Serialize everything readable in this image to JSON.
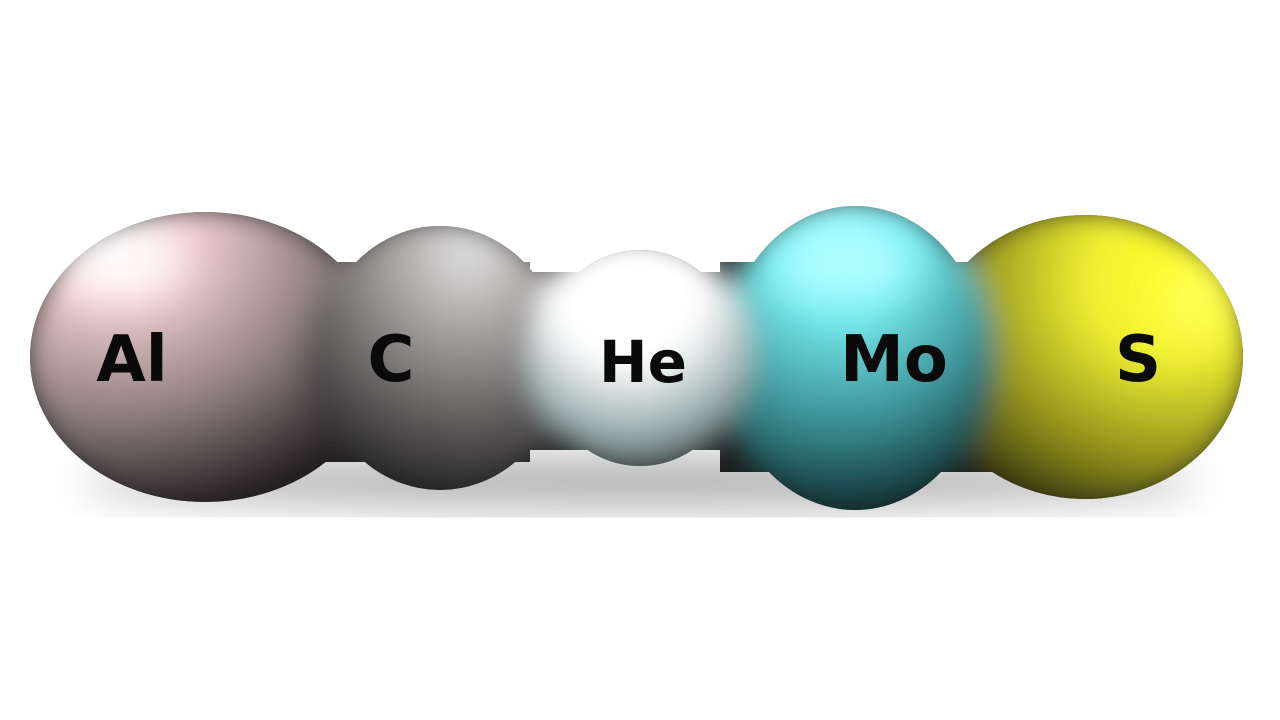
{
  "molecule": {
    "atoms": [
      {
        "symbol": "Al",
        "color": "#f7d3d6"
      },
      {
        "symbol": "C",
        "color": "#b6b6b6"
      },
      {
        "symbol": "He",
        "color": "#ffffff"
      },
      {
        "symbol": "Mo",
        "color": "#7cf3f7"
      },
      {
        "symbol": "S",
        "color": "#f5f52a"
      }
    ]
  }
}
